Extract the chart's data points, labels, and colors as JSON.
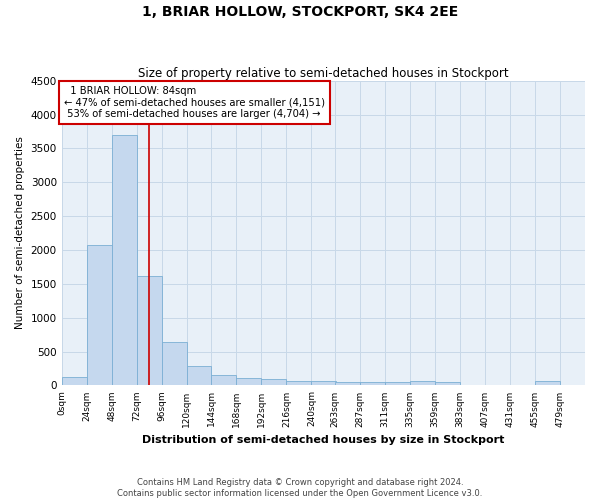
{
  "title": "1, BRIAR HOLLOW, STOCKPORT, SK4 2EE",
  "subtitle": "Size of property relative to semi-detached houses in Stockport",
  "xlabel": "Distribution of semi-detached houses by size in Stockport",
  "ylabel": "Number of semi-detached properties",
  "footer_line1": "Contains HM Land Registry data © Crown copyright and database right 2024.",
  "footer_line2": "Contains public sector information licensed under the Open Government Licence v3.0.",
  "property_size": 84,
  "property_label": "1 BRIAR HOLLOW: 84sqm",
  "pct_smaller": 47,
  "pct_larger": 53,
  "count_smaller": 4151,
  "count_larger": 4704,
  "bin_starts": [
    0,
    24,
    48,
    72,
    96,
    120,
    144,
    168,
    192,
    216,
    240,
    263,
    287,
    311,
    335,
    359,
    383,
    407,
    431,
    455,
    479
  ],
  "bin_width": 24,
  "bar_heights": [
    120,
    2080,
    3700,
    1620,
    640,
    280,
    160,
    110,
    90,
    70,
    60,
    50,
    50,
    50,
    60,
    50,
    0,
    0,
    0,
    60
  ],
  "bar_color": "#c5d8ee",
  "bar_edge_color": "#7bafd4",
  "grid_color": "#c8d8e8",
  "background_color": "#e8f0f8",
  "annotation_box_color": "#cc0000",
  "red_line_color": "#cc0000",
  "ylim": [
    0,
    4500
  ],
  "yticks": [
    0,
    500,
    1000,
    1500,
    2000,
    2500,
    3000,
    3500,
    4000,
    4500
  ]
}
